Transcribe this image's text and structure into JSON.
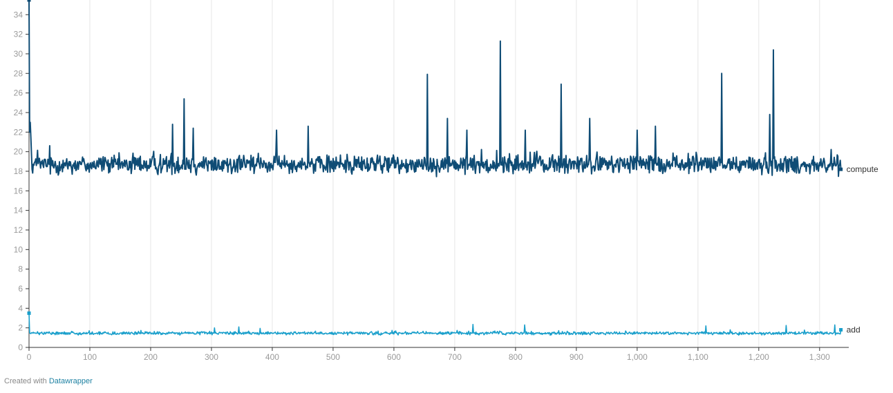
{
  "chart_data": {
    "type": "line",
    "xlim": [
      0,
      1340
    ],
    "ylim": [
      0,
      35.5
    ],
    "x_ticks": [
      0,
      100,
      200,
      300,
      400,
      500,
      600,
      700,
      800,
      900,
      1000,
      1100,
      1200,
      1300
    ],
    "x_tick_labels": [
      "0",
      "100",
      "200",
      "300",
      "400",
      "500",
      "600",
      "700",
      "800",
      "900",
      "1,000",
      "1,100",
      "1,200",
      "1,300"
    ],
    "y_ticks": [
      0,
      2,
      4,
      6,
      8,
      10,
      12,
      14,
      16,
      18,
      20,
      22,
      24,
      26,
      28,
      30,
      32,
      34
    ],
    "y_tick_labels": [
      "0",
      "2",
      "4",
      "6",
      "8",
      "10",
      "12",
      "14",
      "16",
      "18",
      "20",
      "22",
      "24",
      "26",
      "28",
      "30",
      "32",
      "34"
    ],
    "grid": "vertical",
    "series": [
      {
        "name": "compute",
        "color": "#0f4c75",
        "n_points": 1336,
        "x_start": 0,
        "start_values": [
          35.5,
          22,
          23,
          21.5,
          19.8,
          18.2
        ],
        "baseline": 18.7,
        "noise_amplitude": 0.9,
        "peaks": [
          {
            "x": 236,
            "y": 22.8
          },
          {
            "x": 255,
            "y": 25.4
          },
          {
            "x": 270,
            "y": 22.4
          },
          {
            "x": 407,
            "y": 22.2
          },
          {
            "x": 459,
            "y": 22.6
          },
          {
            "x": 655,
            "y": 27.9
          },
          {
            "x": 688,
            "y": 23.4
          },
          {
            "x": 720,
            "y": 22.2
          },
          {
            "x": 775,
            "y": 31.3
          },
          {
            "x": 816,
            "y": 22.2
          },
          {
            "x": 875,
            "y": 26.9
          },
          {
            "x": 922,
            "y": 23.4
          },
          {
            "x": 1000,
            "y": 22.2
          },
          {
            "x": 1030,
            "y": 22.6
          },
          {
            "x": 1139,
            "y": 28.0
          },
          {
            "x": 1218,
            "y": 23.8
          },
          {
            "x": 1224,
            "y": 30.4
          }
        ],
        "last_value": 18.2
      },
      {
        "name": "add",
        "color": "#1a9fcb",
        "n_points": 1336,
        "x_start": 0,
        "start_values": [
          3.5,
          1.5
        ],
        "baseline": 1.45,
        "noise_amplitude": 0.15,
        "peaks": [
          {
            "x": 305,
            "y": 2.0
          },
          {
            "x": 345,
            "y": 2.1
          },
          {
            "x": 380,
            "y": 1.95
          },
          {
            "x": 730,
            "y": 2.35
          },
          {
            "x": 815,
            "y": 2.3
          },
          {
            "x": 1113,
            "y": 2.2
          },
          {
            "x": 1245,
            "y": 2.25
          },
          {
            "x": 1325,
            "y": 2.3
          }
        ],
        "last_value": 1.8
      }
    ]
  },
  "footer": {
    "prefix": "Created with",
    "link_text": "Datawrapper"
  }
}
